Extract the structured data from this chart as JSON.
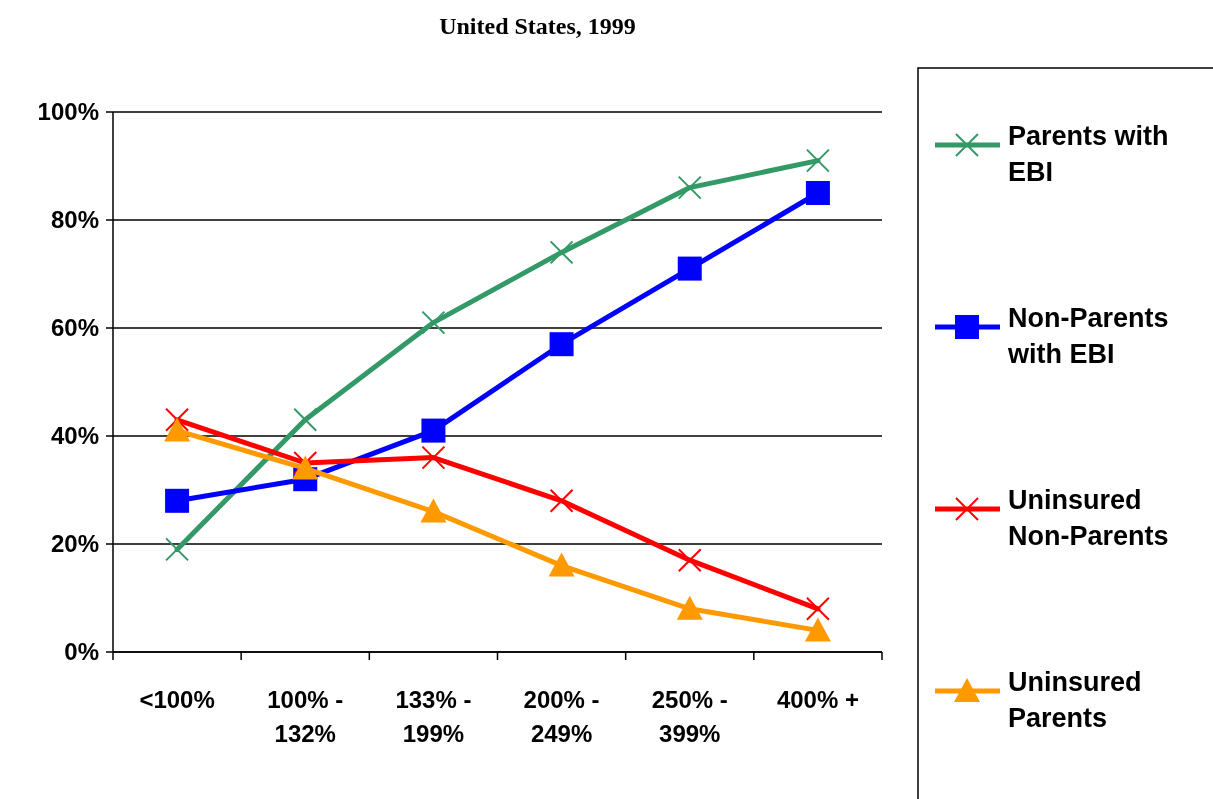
{
  "chart_data": {
    "type": "line",
    "title": "United States, 1999",
    "categories": [
      "<100%",
      "100% - 132%",
      "133% - 199%",
      "200% - 249%",
      "250% - 399%",
      "400% +"
    ],
    "series": [
      {
        "name": "Parents with EBI",
        "color": "#339966",
        "values": [
          19,
          43,
          61,
          74,
          86,
          91
        ],
        "marker": "cross"
      },
      {
        "name": "Non-Parents with EBI",
        "color": "#0000ff",
        "values": [
          28,
          32,
          41,
          57,
          71,
          85
        ],
        "marker": "square"
      },
      {
        "name": "Uninsured Non-Parents",
        "color": "#ff0000",
        "values": [
          43,
          35,
          36,
          28,
          17,
          8
        ],
        "marker": "cross"
      },
      {
        "name": "Uninsured Parents",
        "color": "#ff9900",
        "values": [
          41,
          34,
          26,
          16,
          8,
          4
        ],
        "marker": "triangle"
      }
    ],
    "ylim": [
      0,
      100
    ],
    "yticks": [
      {
        "value": 0,
        "label": "0%"
      },
      {
        "value": 20,
        "label": "20%"
      },
      {
        "value": 40,
        "label": "40%"
      },
      {
        "value": 60,
        "label": "60%"
      },
      {
        "value": 80,
        "label": "80%"
      },
      {
        "value": 100,
        "label": "100%"
      }
    ],
    "grid": "y",
    "legend": "right"
  }
}
